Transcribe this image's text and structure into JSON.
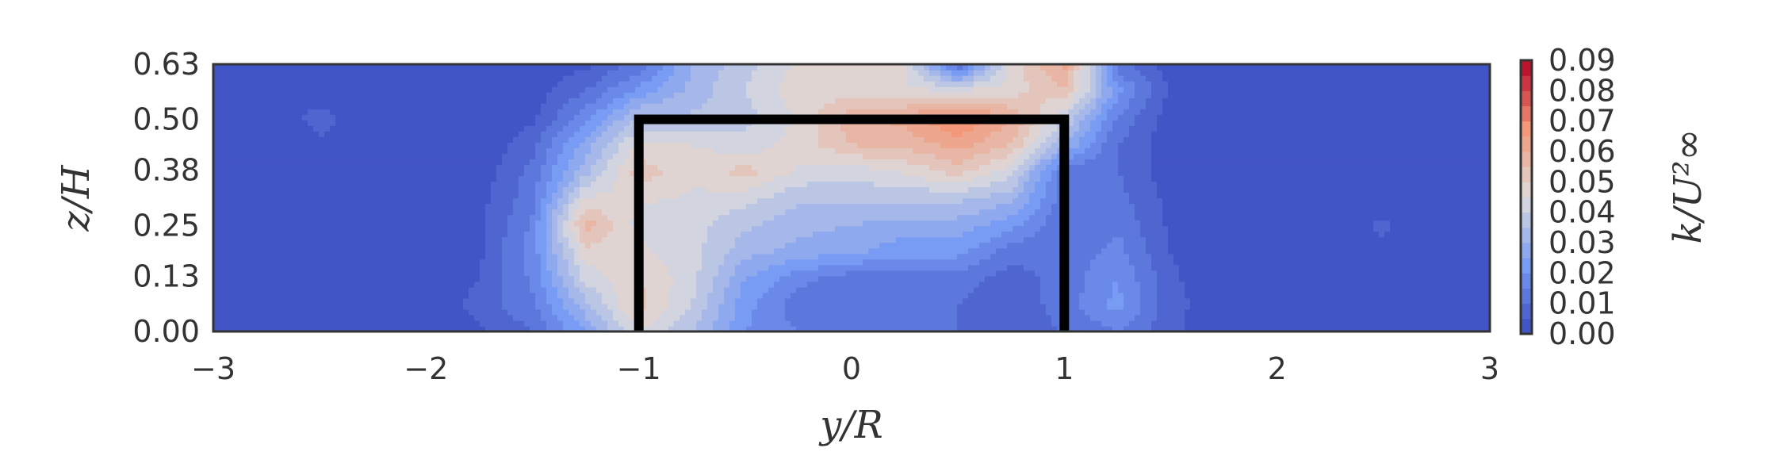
{
  "chart_data": {
    "type": "heatmap",
    "subtype": "filled-contour",
    "title": "",
    "xlabel": "y/R",
    "ylabel": "z/H",
    "colorbar_label": "k/U²∞",
    "xlim": [
      -3,
      3
    ],
    "ylim": [
      0,
      0.63
    ],
    "x_ticks": [
      "−3",
      "−2",
      "−1",
      "0",
      "1",
      "2",
      "3"
    ],
    "x_tick_values": [
      -3,
      -2,
      -1,
      0,
      1,
      2,
      3
    ],
    "y_ticks": [
      "0.00",
      "0.13",
      "0.25",
      "0.38",
      "0.50",
      "0.63"
    ],
    "y_tick_values": [
      0.0,
      0.13,
      0.25,
      0.38,
      0.5,
      0.63
    ],
    "colorbar_ticks": [
      "0.00",
      "0.01",
      "0.02",
      "0.03",
      "0.04",
      "0.05",
      "0.06",
      "0.07",
      "0.08",
      "0.09"
    ],
    "colorbar_tick_values": [
      0.0,
      0.01,
      0.02,
      0.03,
      0.04,
      0.05,
      0.06,
      0.07,
      0.08,
      0.09
    ],
    "colormap": "coolwarm",
    "color_low": "#3b4cc0",
    "color_mid": "#dddcdc",
    "color_high": "#b40426",
    "grid": false,
    "z_grid": {
      "y": [
        -3.0,
        -2.75,
        -2.5,
        -2.25,
        -2.0,
        -1.75,
        -1.5,
        -1.25,
        -1.0,
        -0.75,
        -0.5,
        -0.25,
        0.0,
        0.25,
        0.5,
        0.75,
        1.0,
        1.25,
        1.5,
        1.75,
        2.0,
        2.25,
        2.5,
        2.75,
        3.0
      ],
      "z": [
        0.0,
        0.063,
        0.126,
        0.189,
        0.252,
        0.315,
        0.378,
        0.441,
        0.504,
        0.567,
        0.63
      ],
      "k": [
        [
          0.001,
          0.001,
          0.001,
          0.002,
          0.001,
          0.004,
          0.01,
          0.025,
          0.045,
          0.035,
          0.02,
          0.015,
          0.012,
          0.012,
          0.01,
          0.008,
          0.01,
          0.015,
          0.006,
          0.001,
          0.001,
          0.002,
          0.001,
          0.001,
          0.001
        ],
        [
          0.001,
          0.001,
          0.001,
          0.004,
          0.001,
          0.007,
          0.014,
          0.033,
          0.052,
          0.04,
          0.022,
          0.012,
          0.01,
          0.011,
          0.01,
          0.007,
          0.012,
          0.022,
          0.007,
          0.001,
          0.001,
          0.003,
          0.001,
          0.001,
          0.001
        ],
        [
          0.001,
          0.001,
          0.001,
          0.002,
          0.001,
          0.005,
          0.016,
          0.042,
          0.05,
          0.042,
          0.025,
          0.017,
          0.012,
          0.012,
          0.012,
          0.008,
          0.012,
          0.02,
          0.006,
          0.001,
          0.001,
          0.001,
          0.001,
          0.001,
          0.001
        ],
        [
          0.001,
          0.001,
          0.001,
          0.001,
          0.001,
          0.004,
          0.017,
          0.048,
          0.046,
          0.042,
          0.032,
          0.028,
          0.026,
          0.022,
          0.022,
          0.012,
          0.011,
          0.017,
          0.005,
          0.001,
          0.001,
          0.001,
          0.004,
          0.001,
          0.001
        ],
        [
          0.001,
          0.001,
          0.001,
          0.001,
          0.001,
          0.004,
          0.016,
          0.058,
          0.043,
          0.042,
          0.036,
          0.032,
          0.03,
          0.028,
          0.028,
          0.022,
          0.01,
          0.014,
          0.004,
          0.001,
          0.001,
          0.001,
          0.006,
          0.001,
          0.001
        ],
        [
          0.001,
          0.001,
          0.001,
          0.001,
          0.001,
          0.003,
          0.013,
          0.046,
          0.046,
          0.044,
          0.042,
          0.036,
          0.036,
          0.036,
          0.036,
          0.032,
          0.012,
          0.012,
          0.003,
          0.001,
          0.001,
          0.001,
          0.002,
          0.001,
          0.001
        ],
        [
          0.001,
          0.001,
          0.001,
          0.001,
          0.001,
          0.002,
          0.012,
          0.033,
          0.053,
          0.047,
          0.052,
          0.044,
          0.042,
          0.046,
          0.052,
          0.042,
          0.012,
          0.01,
          0.002,
          0.001,
          0.001,
          0.001,
          0.001,
          0.001,
          0.001
        ],
        [
          0.001,
          0.001,
          0.004,
          0.001,
          0.001,
          0.001,
          0.008,
          0.028,
          0.046,
          0.045,
          0.042,
          0.047,
          0.055,
          0.057,
          0.062,
          0.055,
          0.03,
          0.01,
          0.002,
          0.001,
          0.001,
          0.001,
          0.001,
          0.001,
          0.001
        ],
        [
          0.001,
          0.001,
          0.007,
          0.001,
          0.001,
          0.001,
          0.004,
          0.018,
          0.036,
          0.036,
          0.038,
          0.046,
          0.058,
          0.062,
          0.071,
          0.06,
          0.04,
          0.014,
          0.002,
          0.001,
          0.001,
          0.001,
          0.001,
          0.001,
          0.001
        ],
        [
          0.001,
          0.001,
          0.002,
          0.001,
          0.001,
          0.001,
          0.002,
          0.01,
          0.022,
          0.032,
          0.04,
          0.048,
          0.048,
          0.046,
          0.046,
          0.048,
          0.054,
          0.022,
          0.004,
          0.001,
          0.001,
          0.001,
          0.002,
          0.001,
          0.001
        ],
        [
          0.001,
          0.001,
          0.001,
          0.001,
          0.001,
          0.001,
          0.001,
          0.004,
          0.012,
          0.03,
          0.038,
          0.046,
          0.048,
          0.045,
          0.01,
          0.046,
          0.062,
          0.012,
          0.002,
          0.001,
          0.001,
          0.001,
          0.002,
          0.001,
          0.001
        ]
      ]
    },
    "annotations": [
      {
        "type": "outline",
        "color": "#000000",
        "points": [
          [
            -1.0,
            0.0
          ],
          [
            -1.0,
            0.5
          ],
          [
            1.0,
            0.5
          ],
          [
            1.0,
            0.0
          ]
        ]
      }
    ]
  }
}
